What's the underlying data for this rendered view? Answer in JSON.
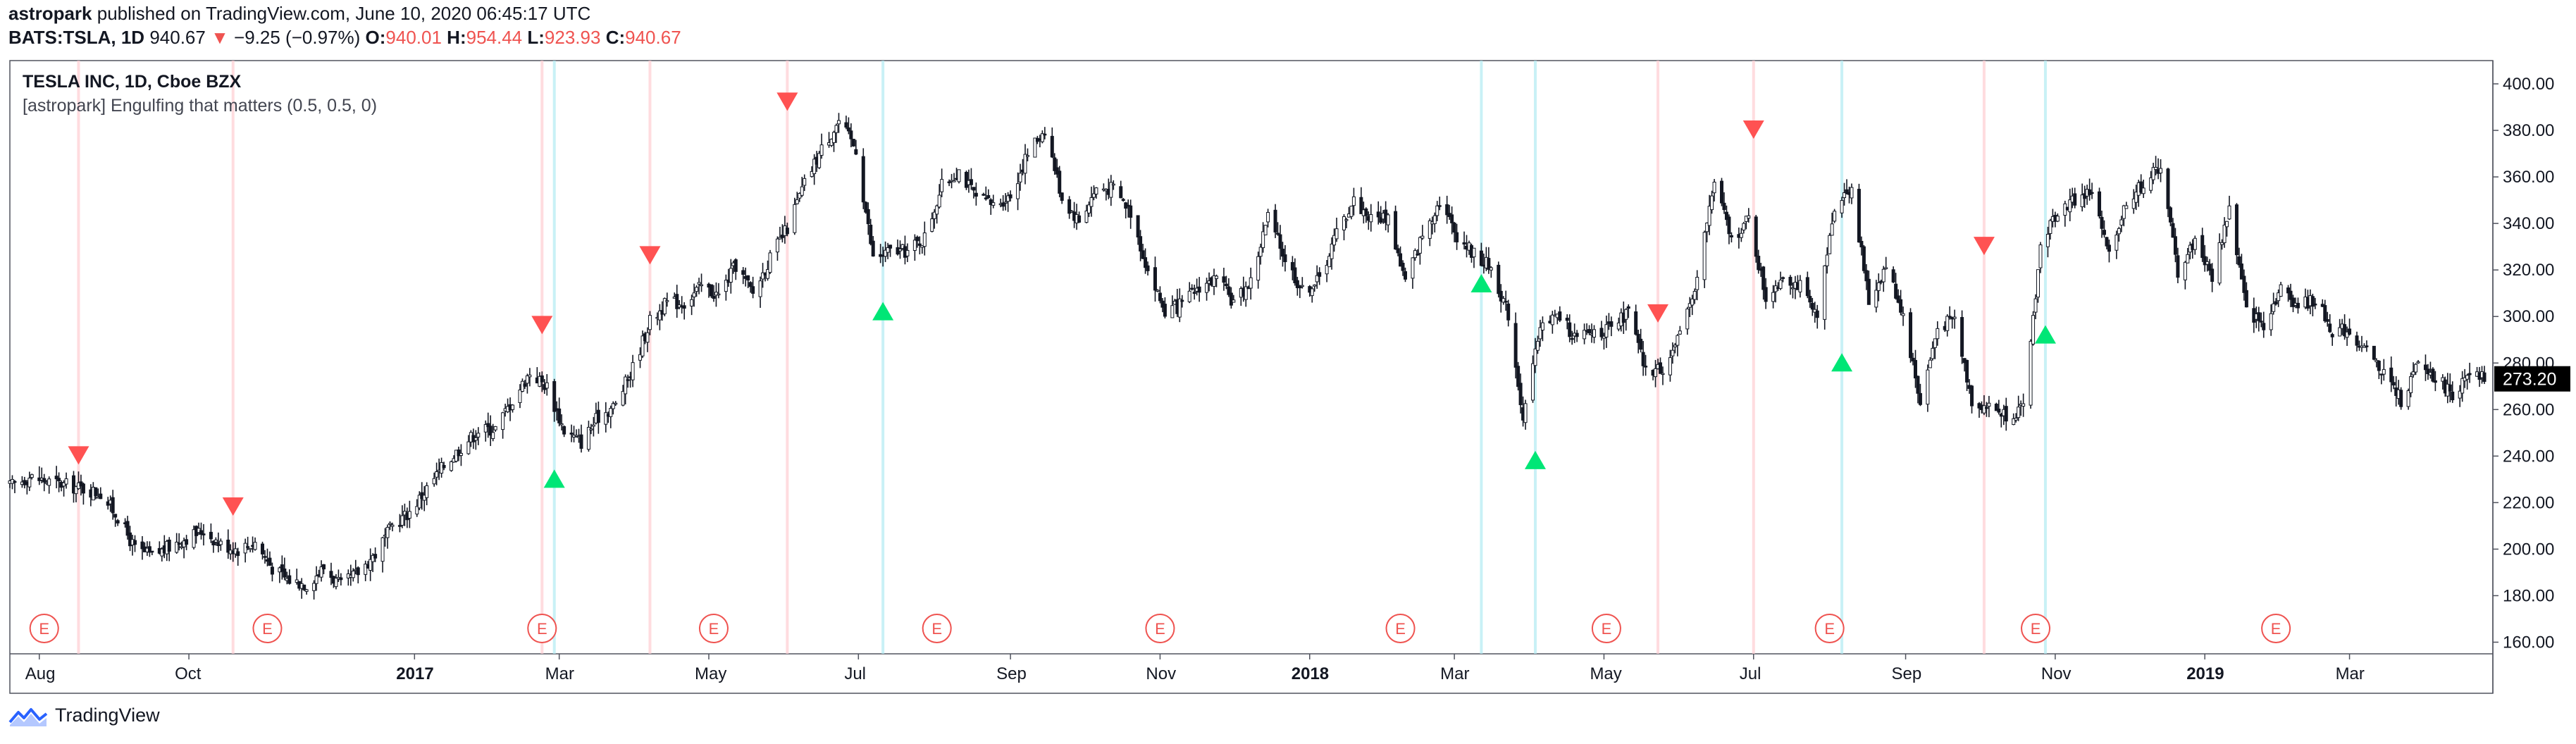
{
  "header": {
    "publisher": "astropark",
    "published_text": "published on TradingView.com, June 10, 2020 06:45:17 UTC",
    "symbol": "BATS:TSLA, 1D",
    "last": "940.67",
    "change_arrow": "▼",
    "change": "−9.25 (−0.97%)",
    "o_label": "O:",
    "o_value": "940.01",
    "h_label": "H:",
    "h_value": "954.44",
    "l_label": "L:",
    "l_value": "923.93",
    "c_label": "C:",
    "c_value": "940.67"
  },
  "legend": {
    "title": "TESLA INC, 1D, Cboe BZX",
    "study": "[astropark] Engulfing that matters (0.5, 0.5, 0)"
  },
  "footer": {
    "brand": "TradingView"
  },
  "colors": {
    "bear_signal": "#ff5252",
    "bull_signal": "#00e676",
    "bear_band": "#ffcdd2",
    "bull_band": "#b2ebf2",
    "earnings": "#ef5350",
    "candle": "#131722",
    "price_tag_bg": "#000000",
    "axis": "#9598a1"
  },
  "icons": {
    "earnings_marker": "circle-e-icon",
    "bear_signal": "triangle-down-icon",
    "bull_signal": "triangle-up-icon",
    "logo": "tradingview-logo-icon"
  },
  "chart_data": {
    "type": "candlestick",
    "symbol": "TSLA",
    "interval": "1D",
    "ylim": [
      155,
      410
    ],
    "y_ticks": [
      "160.00",
      "180.00",
      "200.00",
      "220.00",
      "240.00",
      "260.00",
      "280.00",
      "300.00",
      "320.00",
      "340.00",
      "360.00",
      "380.00",
      "400.00"
    ],
    "x_ticks": [
      {
        "label": "Aug",
        "date": "2016-08-01",
        "bold": false
      },
      {
        "label": "Oct",
        "date": "2016-10-01",
        "bold": false
      },
      {
        "label": "2017",
        "date": "2017-01-01",
        "bold": true
      },
      {
        "label": "Mar",
        "date": "2017-03-01",
        "bold": false
      },
      {
        "label": "May",
        "date": "2017-05-01",
        "bold": false
      },
      {
        "label": "Jul",
        "date": "2017-07-01",
        "bold": false
      },
      {
        "label": "Sep",
        "date": "2017-09-01",
        "bold": false
      },
      {
        "label": "Nov",
        "date": "2017-11-01",
        "bold": false
      },
      {
        "label": "2018",
        "date": "2018-01-01",
        "bold": true
      },
      {
        "label": "Mar",
        "date": "2018-03-01",
        "bold": false
      },
      {
        "label": "May",
        "date": "2018-05-01",
        "bold": false
      },
      {
        "label": "Jul",
        "date": "2018-07-01",
        "bold": false
      },
      {
        "label": "Sep",
        "date": "2018-09-01",
        "bold": false
      },
      {
        "label": "Nov",
        "date": "2018-11-01",
        "bold": false
      },
      {
        "label": "2019",
        "date": "2019-01-01",
        "bold": true
      },
      {
        "label": "Mar",
        "date": "2019-03-01",
        "bold": false
      }
    ],
    "date_range": [
      "2016-07-20",
      "2019-04-25"
    ],
    "last_price_label": "273.20",
    "price_path": [
      [
        "2016-07-20",
        227
      ],
      [
        "2016-07-28",
        231
      ],
      [
        "2016-08-05",
        229
      ],
      [
        "2016-08-19",
        226
      ],
      [
        "2016-08-26",
        224
      ],
      [
        "2016-09-02",
        214
      ],
      [
        "2016-09-09",
        200
      ],
      [
        "2016-09-16",
        197
      ],
      [
        "2016-09-30",
        205
      ],
      [
        "2016-10-07",
        208
      ],
      [
        "2016-10-14",
        202
      ],
      [
        "2016-10-21",
        200
      ],
      [
        "2016-10-28",
        203
      ],
      [
        "2016-11-04",
        192
      ],
      [
        "2016-11-10",
        187
      ],
      [
        "2016-11-18",
        185
      ],
      [
        "2016-11-25",
        192
      ],
      [
        "2016-12-02",
        184
      ],
      [
        "2016-12-09",
        190
      ],
      [
        "2016-12-16",
        198
      ],
      [
        "2016-12-23",
        210
      ],
      [
        "2016-12-30",
        216
      ],
      [
        "2017-01-06",
        226
      ],
      [
        "2017-01-13",
        236
      ],
      [
        "2017-01-20",
        244
      ],
      [
        "2017-01-27",
        251
      ],
      [
        "2017-02-03",
        252
      ],
      [
        "2017-02-10",
        264
      ],
      [
        "2017-02-17",
        276
      ],
      [
        "2017-02-24",
        270
      ],
      [
        "2017-03-03",
        251
      ],
      [
        "2017-03-10",
        246
      ],
      [
        "2017-03-17",
        257
      ],
      [
        "2017-03-24",
        262
      ],
      [
        "2017-03-31",
        278
      ],
      [
        "2017-04-07",
        298
      ],
      [
        "2017-04-14",
        306
      ],
      [
        "2017-04-21",
        306
      ],
      [
        "2017-04-28",
        313
      ],
      [
        "2017-05-05",
        309
      ],
      [
        "2017-05-12",
        322
      ],
      [
        "2017-05-19",
        310
      ],
      [
        "2017-05-26",
        325
      ],
      [
        "2017-06-02",
        338
      ],
      [
        "2017-06-09",
        357
      ],
      [
        "2017-06-16",
        372
      ],
      [
        "2017-06-23",
        384
      ],
      [
        "2017-06-30",
        372
      ],
      [
        "2017-07-07",
        325
      ],
      [
        "2017-07-14",
        328
      ],
      [
        "2017-07-21",
        328
      ],
      [
        "2017-07-28",
        334
      ],
      [
        "2017-08-04",
        356
      ],
      [
        "2017-08-11",
        363
      ],
      [
        "2017-08-18",
        351
      ],
      [
        "2017-08-25",
        348
      ],
      [
        "2017-09-01",
        352
      ],
      [
        "2017-09-08",
        370
      ],
      [
        "2017-09-15",
        381
      ],
      [
        "2017-09-22",
        351
      ],
      [
        "2017-09-29",
        341
      ],
      [
        "2017-10-06",
        355
      ],
      [
        "2017-10-13",
        355
      ],
      [
        "2017-10-20",
        345
      ],
      [
        "2017-10-27",
        320
      ],
      [
        "2017-11-03",
        302
      ],
      [
        "2017-11-10",
        305
      ],
      [
        "2017-11-17",
        313
      ],
      [
        "2017-11-24",
        316
      ],
      [
        "2017-12-01",
        306
      ],
      [
        "2017-12-08",
        315
      ],
      [
        "2017-12-15",
        343
      ],
      [
        "2017-12-22",
        325
      ],
      [
        "2017-12-29",
        311
      ],
      [
        "2018-01-05",
        316
      ],
      [
        "2018-01-12",
        336
      ],
      [
        "2018-01-19",
        350
      ],
      [
        "2018-01-26",
        342
      ],
      [
        "2018-02-02",
        343
      ],
      [
        "2018-02-09",
        315
      ],
      [
        "2018-02-16",
        335
      ],
      [
        "2018-02-23",
        350
      ],
      [
        "2018-03-02",
        335
      ],
      [
        "2018-03-09",
        327
      ],
      [
        "2018-03-16",
        321
      ],
      [
        "2018-03-23",
        301
      ],
      [
        "2018-03-29",
        257
      ],
      [
        "2018-04-06",
        299
      ],
      [
        "2018-04-13",
        300
      ],
      [
        "2018-04-20",
        290
      ],
      [
        "2018-04-27",
        294
      ],
      [
        "2018-05-04",
        294
      ],
      [
        "2018-05-11",
        302
      ],
      [
        "2018-05-18",
        276
      ],
      [
        "2018-05-25",
        278
      ],
      [
        "2018-06-01",
        291
      ],
      [
        "2018-06-08",
        317
      ],
      [
        "2018-06-15",
        358
      ],
      [
        "2018-06-22",
        333
      ],
      [
        "2018-06-29",
        342
      ],
      [
        "2018-07-06",
        308
      ],
      [
        "2018-07-13",
        318
      ],
      [
        "2018-07-20",
        313
      ],
      [
        "2018-07-27",
        298
      ],
      [
        "2018-08-03",
        348
      ],
      [
        "2018-08-10",
        356
      ],
      [
        "2018-08-17",
        306
      ],
      [
        "2018-08-24",
        322
      ],
      [
        "2018-08-31",
        301
      ],
      [
        "2018-09-07",
        263
      ],
      [
        "2018-09-14",
        295
      ],
      [
        "2018-09-21",
        299
      ],
      [
        "2018-09-28",
        264
      ],
      [
        "2018-10-05",
        261
      ],
      [
        "2018-10-12",
        258
      ],
      [
        "2018-10-19",
        260
      ],
      [
        "2018-10-26",
        330
      ],
      [
        "2018-11-02",
        346
      ],
      [
        "2018-11-09",
        350
      ],
      [
        "2018-11-16",
        354
      ],
      [
        "2018-11-23",
        325
      ],
      [
        "2018-11-30",
        350
      ],
      [
        "2018-12-07",
        357
      ],
      [
        "2018-12-14",
        365
      ],
      [
        "2018-12-21",
        319
      ],
      [
        "2018-12-28",
        333
      ],
      [
        "2019-01-04",
        317
      ],
      [
        "2019-01-11",
        347
      ],
      [
        "2019-01-18",
        302
      ],
      [
        "2019-01-25",
        297
      ],
      [
        "2019-02-01",
        312
      ],
      [
        "2019-02-08",
        305
      ],
      [
        "2019-02-15",
        307
      ],
      [
        "2019-02-22",
        294
      ],
      [
        "2019-03-01",
        294
      ],
      [
        "2019-03-08",
        284
      ],
      [
        "2019-03-15",
        276
      ],
      [
        "2019-03-22",
        264
      ],
      [
        "2019-03-29",
        279
      ],
      [
        "2019-04-05",
        274
      ],
      [
        "2019-04-12",
        267
      ],
      [
        "2019-04-18",
        273
      ],
      [
        "2019-04-25",
        274
      ]
    ],
    "bear_signals": [
      {
        "date": "2016-08-17",
        "price": 240
      },
      {
        "date": "2016-10-19",
        "price": 218
      },
      {
        "date": "2017-02-22",
        "price": 296
      },
      {
        "date": "2017-04-07",
        "price": 326
      },
      {
        "date": "2017-06-02",
        "price": 392
      },
      {
        "date": "2018-05-23",
        "price": 301
      },
      {
        "date": "2018-07-01",
        "price": 380
      },
      {
        "date": "2018-10-03",
        "price": 330
      }
    ],
    "bull_signals": [
      {
        "date": "2017-02-27",
        "price": 230
      },
      {
        "date": "2017-07-11",
        "price": 302
      },
      {
        "date": "2018-03-12",
        "price": 314
      },
      {
        "date": "2018-04-03",
        "price": 238
      },
      {
        "date": "2018-08-06",
        "price": 280
      },
      {
        "date": "2018-10-28",
        "price": 292
      }
    ],
    "earnings_markers": [
      "2016-08-03",
      "2016-11-02",
      "2017-02-22",
      "2017-05-03",
      "2017-08-02",
      "2017-11-01",
      "2018-02-07",
      "2018-05-02",
      "2018-08-01",
      "2018-10-24",
      "2019-01-30"
    ],
    "earnings_label": "E",
    "grid": false
  }
}
